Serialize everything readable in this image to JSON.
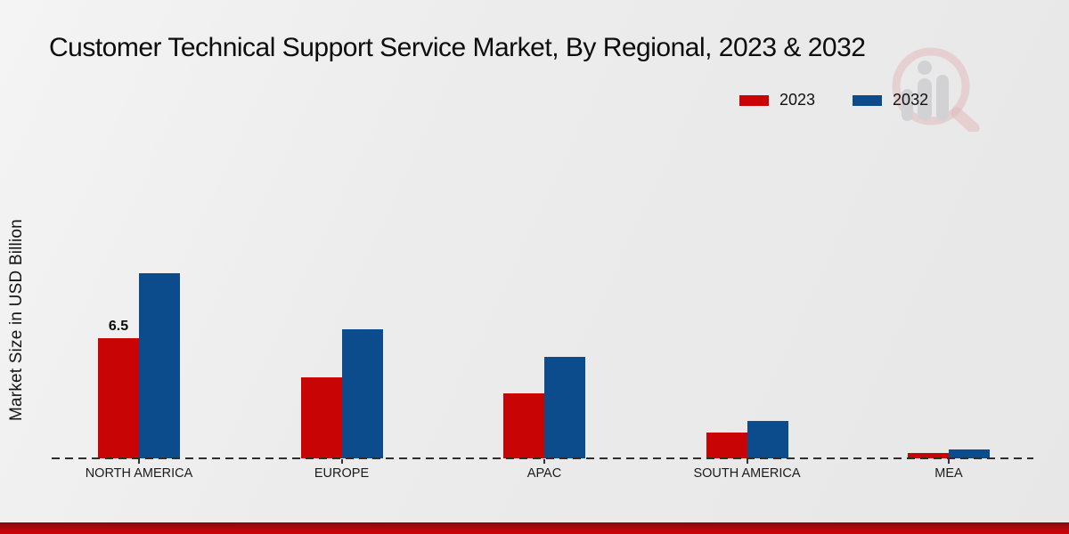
{
  "title": "Customer Technical Support Service Market, By Regional, 2023 & 2032",
  "y_axis_label": "Market Size in USD Billion",
  "legend": {
    "items": [
      {
        "label": "2023",
        "color": "#c90404"
      },
      {
        "label": "2032",
        "color": "#0c4b8c"
      }
    ]
  },
  "watermark_icon": "magnifier-bar-chart-logo",
  "chart_data": {
    "type": "bar",
    "categories": [
      "NORTH AMERICA",
      "EUROPE",
      "APAC",
      "SOUTH AMERICA",
      "MEA"
    ],
    "series": [
      {
        "name": "2023",
        "color": "#c90404",
        "values": [
          6.5,
          4.4,
          3.5,
          1.4,
          0.3
        ]
      },
      {
        "name": "2032",
        "color": "#0c4b8c",
        "values": [
          10.0,
          7.0,
          5.5,
          2.0,
          0.5
        ]
      }
    ],
    "data_labels": [
      {
        "series": "2023",
        "category": "NORTH AMERICA",
        "text": "6.5"
      }
    ],
    "ylabel": "Market Size in USD Billion",
    "ylim": [
      0,
      10.5
    ],
    "grid": false,
    "baseline_style": "dashed",
    "legend_position": "top-right"
  }
}
